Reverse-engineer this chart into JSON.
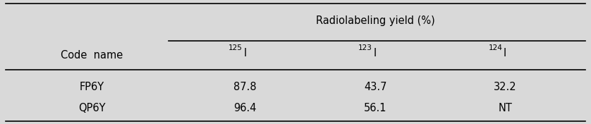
{
  "title": "Radiolabeling yield (%)",
  "col_header_left": "Code  name",
  "col_headers_super": [
    "125",
    "123",
    "124"
  ],
  "rows": [
    [
      "FP6Y",
      "87.8",
      "43.7",
      "32.2"
    ],
    [
      "QP6Y",
      "96.4",
      "56.1",
      "NT"
    ]
  ],
  "bg_color": "#d9d9d9",
  "text_color": "#000000",
  "fig_width": 8.38,
  "fig_height": 1.76,
  "dpi": 100
}
